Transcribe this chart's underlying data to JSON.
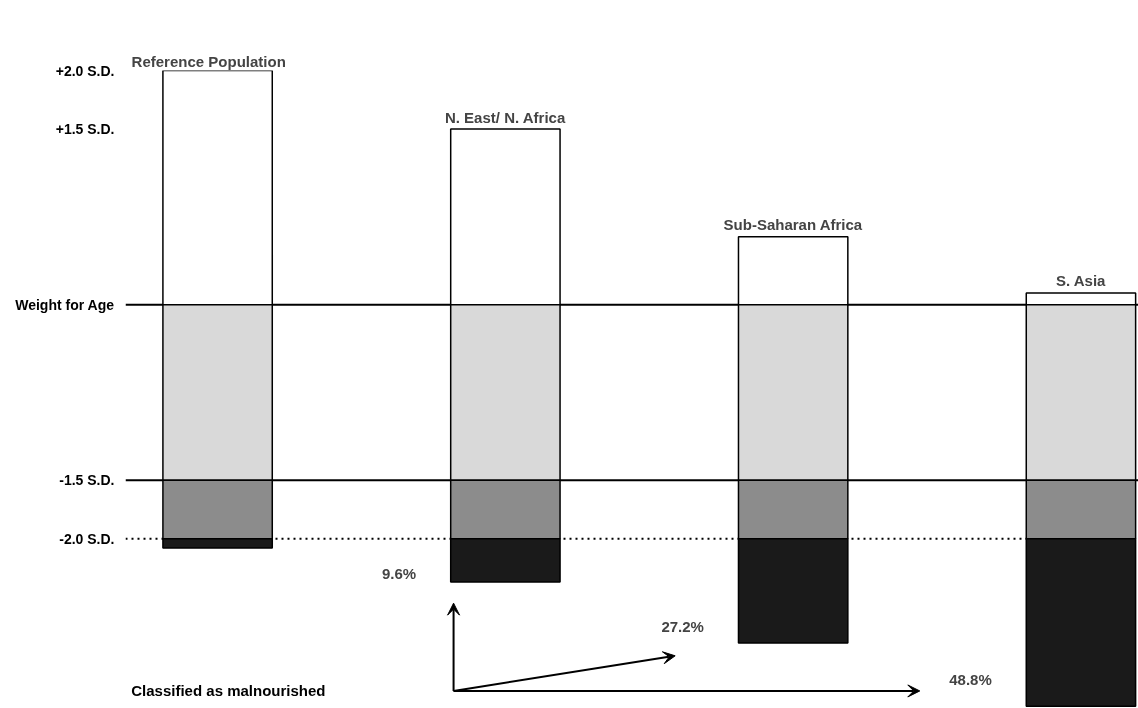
{
  "chart_data": {
    "type": "bar",
    "stacked": true,
    "grid": false,
    "tick_labels": "y",
    "categories": [
      "Reference Population",
      "N. East/ N. Africa",
      "Sub-Saharan Africa",
      "S. Asia"
    ],
    "ylim": [
      -3.45,
      2.0
    ],
    "yticks": [
      {
        "value": 2.0,
        "label": "+2.0 S.D."
      },
      {
        "value": 1.5,
        "label": "+1.5 S.D."
      },
      {
        "value": 0,
        "label": "Weight for Age"
      },
      {
        "value": -1.5,
        "label": "-1.5 S.D."
      },
      {
        "value": -2.0,
        "label": "-2.0 S.D."
      }
    ],
    "series": [
      {
        "color": "#ffffff",
        "values": [
          2.0,
          1.5,
          0.58,
          0.1
        ]
      },
      {
        "color": "#d9d9d9",
        "values": [
          -1.5,
          -1.5,
          -1.5,
          -1.5
        ]
      },
      {
        "color": "#8c8c8c",
        "values": [
          -0.5,
          -0.5,
          -0.5,
          -0.5
        ]
      },
      {
        "color": "#1a1a1a",
        "values": [
          -0.08,
          -0.37,
          -0.89,
          -1.43
        ]
      }
    ],
    "ref_lines": [
      {
        "axis": "y",
        "value": 0,
        "line_style": "solid"
      },
      {
        "axis": "y",
        "value": -1.5,
        "line_style": "solid"
      },
      {
        "axis": "y",
        "value": -2.0,
        "line_style": "dotted"
      }
    ],
    "annotations": [
      "9.6%",
      "27.2%",
      "48.8%",
      "Classified as malnourished"
    ]
  }
}
